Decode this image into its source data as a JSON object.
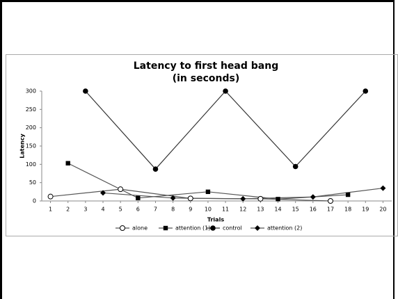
{
  "chart_data": {
    "type": "line",
    "title": "Latency to first head bang",
    "subtitle": "(in seconds)",
    "x_label": "Trials",
    "y_label": "Latency",
    "xlim": [
      0.5,
      20.5
    ],
    "xticks": [
      1,
      2,
      3,
      4,
      5,
      6,
      7,
      8,
      9,
      10,
      11,
      12,
      13,
      14,
      15,
      16,
      17,
      18,
      19,
      20
    ],
    "ylim": [
      0,
      300
    ],
    "yticks": [
      0,
      50,
      100,
      150,
      200,
      250,
      300
    ],
    "series": [
      {
        "name": "alone",
        "color": "#555555",
        "marker": "open-circle",
        "x": [
          1,
          5,
          9,
          13,
          17
        ],
        "values": [
          12,
          32,
          7,
          6,
          0
        ]
      },
      {
        "name": "attention (1)",
        "color": "#555555",
        "marker": "square",
        "x": [
          2,
          6,
          10,
          14,
          18
        ],
        "values": [
          103,
          8,
          25,
          5,
          17
        ]
      },
      {
        "name": "control",
        "color": "#333333",
        "marker": "circle",
        "x": [
          3,
          7,
          11,
          15,
          19
        ],
        "values": [
          300,
          87,
          300,
          94,
          300
        ]
      },
      {
        "name": "attention (2)",
        "color": "#555555",
        "marker": "diamond",
        "x": [
          4,
          8,
          12,
          16,
          20
        ],
        "values": [
          22,
          8,
          6,
          11,
          35
        ]
      }
    ]
  }
}
